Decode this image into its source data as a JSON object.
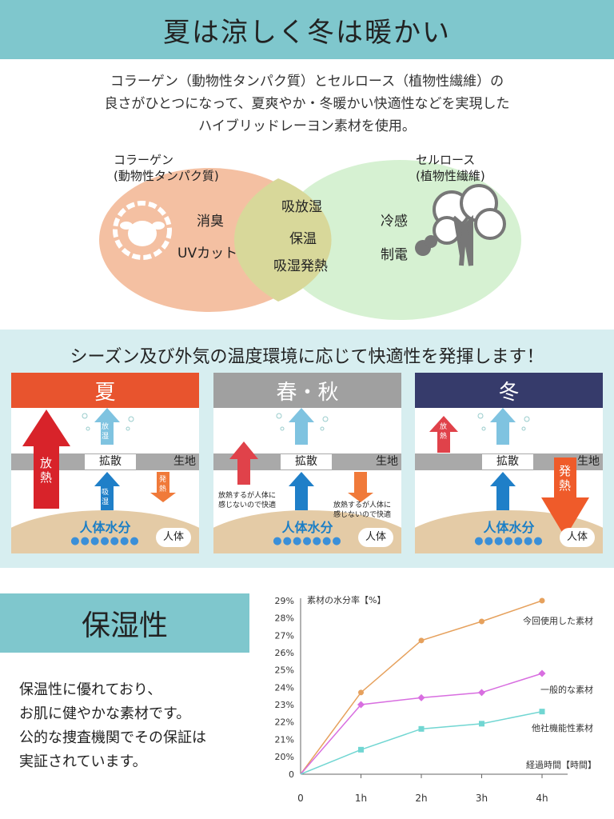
{
  "header": {
    "title": "夏は涼しく冬は暖かい"
  },
  "intro": {
    "text": "コラーゲン（動物性タンパク質）とセルロース（植物性繊維）の\n良さがひとつになって、夏爽やか・冬暖かい快適性などを実現した\nハイブリッドレーヨン素材を使用。"
  },
  "venn": {
    "left_label": "コラーゲン\n(動物性タンパク質)",
    "right_label": "セルロース\n(植物性繊維)",
    "left_items": [
      "消臭",
      "UVカット"
    ],
    "center_items": [
      "吸放湿",
      "保温",
      "吸湿発熱"
    ],
    "right_items": [
      "冷感",
      "制電"
    ],
    "left_icon": "sheep-icon",
    "right_icon": "tree-icon",
    "colors": {
      "left": "#f3b998",
      "right": "#d2f0cd",
      "overlap": "#d8d89a"
    }
  },
  "seasons": {
    "title": "シーズン及び外気の温度環境に応じて快適性を発揮します！",
    "fabric_label": "生地",
    "diffuse_label": "拡散",
    "body_label": "人体",
    "water_label": "人体水分",
    "drops_icon": "water-drop-icon",
    "release_moisture": "放湿",
    "absorb_moisture": "吸湿",
    "release_heat": "放熱",
    "generate_heat": "発熱",
    "panels": [
      {
        "name": "夏",
        "color": "#e8542e"
      },
      {
        "name": "春・秋",
        "color": "#a0a0a0",
        "note_left": "放熱するが人体に\n感じないので快適",
        "note_right": "放熱するが人体に\n感じないので快適"
      },
      {
        "name": "冬",
        "color": "#363b6b"
      }
    ]
  },
  "moisture": {
    "title": "保湿性",
    "description": "保温性に優れており、\nお肌に健やかな素材です。\n公的な捜査機関でその保証は\n実証されています。"
  },
  "chart_data": {
    "type": "line",
    "title": "素材の水分率【%】",
    "xlabel": "経過時間【時間】",
    "x": [
      "0",
      "1h",
      "2h",
      "3h",
      "4h"
    ],
    "yticks": [
      "0",
      "20%",
      "21%",
      "22%",
      "23%",
      "24%",
      "25%",
      "26%",
      "27%",
      "28%",
      "29%"
    ],
    "series": [
      {
        "name": "今回使用した素材",
        "color": "#e6a15d",
        "marker": "circle",
        "values": [
          0,
          23.7,
          26.7,
          27.8,
          29.0
        ]
      },
      {
        "name": "一般的な素材",
        "color": "#d86ee0",
        "marker": "diamond",
        "values": [
          0,
          23.0,
          23.4,
          23.7,
          24.8
        ]
      },
      {
        "name": "他社機能性素材",
        "color": "#71d6d2",
        "marker": "square",
        "values": [
          0,
          20.4,
          21.6,
          21.9,
          22.6
        ]
      }
    ]
  }
}
